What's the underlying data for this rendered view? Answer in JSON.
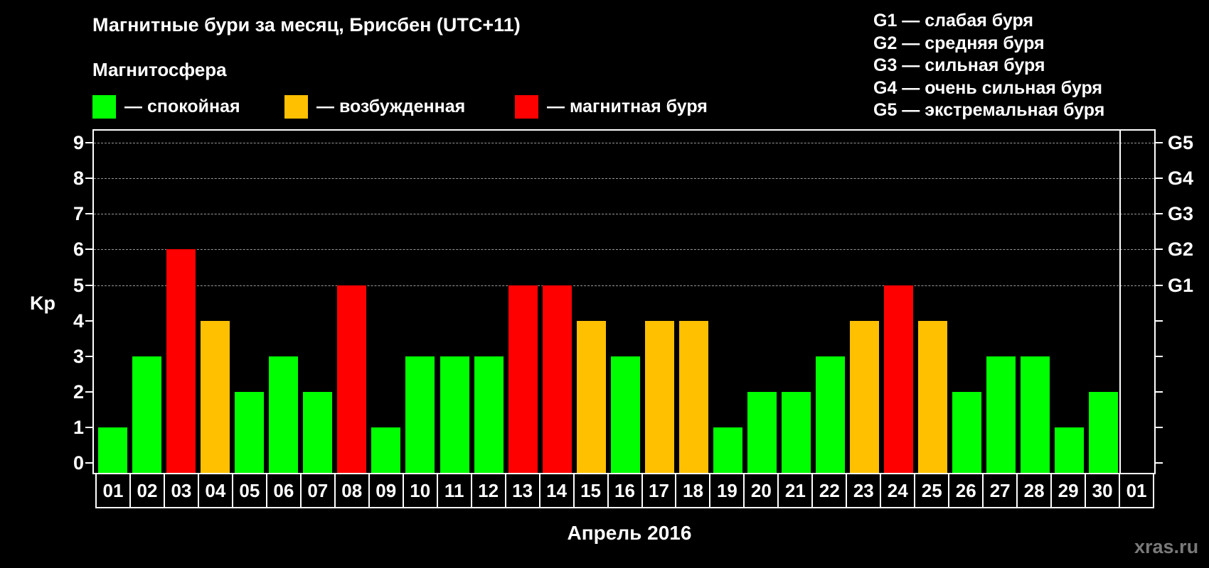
{
  "header": {
    "title": "Магнитные бури за месяц, Брисбен (UTC+11)",
    "subtitle": "Магнитосфера",
    "legend": [
      {
        "label": "— спокойная",
        "color": "#00ff00"
      },
      {
        "label": "— возбужденная",
        "color": "#ffc000"
      },
      {
        "label": "— магнитная буря",
        "color": "#ff0000"
      }
    ]
  },
  "g_scale": [
    "G1 — слабая буря",
    "G2 — средняя буря",
    "G3 — сильная буря",
    "G4 — очень сильная буря",
    "G5 — экстремальная буря"
  ],
  "axes": {
    "ylabel": "Kp",
    "xlabel": "Апрель 2016",
    "y_ticks": [
      "0",
      "1",
      "2",
      "3",
      "4",
      "5",
      "6",
      "7",
      "8",
      "9"
    ],
    "right_ticks": {
      "5": "G1",
      "6": "G2",
      "7": "G3",
      "8": "G4",
      "9": "G5"
    }
  },
  "watermark": "xras.ru",
  "chart_data": {
    "type": "bar",
    "title": "Магнитные бури за месяц, Брисбен (UTC+11)",
    "xlabel": "Апрель 2016",
    "ylabel": "Kp",
    "ylim": [
      0,
      9
    ],
    "grid": "dashed horizontal at 5–9",
    "legend_position": "top",
    "categories": [
      "01",
      "02",
      "03",
      "04",
      "05",
      "06",
      "07",
      "08",
      "09",
      "10",
      "11",
      "12",
      "13",
      "14",
      "15",
      "16",
      "17",
      "18",
      "19",
      "20",
      "21",
      "22",
      "23",
      "24",
      "25",
      "26",
      "27",
      "28",
      "29",
      "30",
      "01"
    ],
    "values": [
      1,
      3,
      6,
      4,
      2,
      3,
      2,
      5,
      1,
      3,
      3,
      3,
      5,
      5,
      4,
      3,
      4,
      4,
      1,
      2,
      2,
      3,
      4,
      5,
      4,
      2,
      3,
      3,
      1,
      2,
      null
    ],
    "status": [
      "calm",
      "calm",
      "storm",
      "active",
      "calm",
      "calm",
      "calm",
      "storm",
      "calm",
      "calm",
      "calm",
      "calm",
      "storm",
      "storm",
      "active",
      "calm",
      "active",
      "active",
      "calm",
      "calm",
      "calm",
      "calm",
      "active",
      "storm",
      "active",
      "calm",
      "calm",
      "calm",
      "calm",
      "calm",
      null
    ],
    "colors": {
      "calm": "#00ff00",
      "active": "#ffc000",
      "storm": "#ff0000"
    },
    "right_axis": {
      "5": "G1",
      "6": "G2",
      "7": "G3",
      "8": "G4",
      "9": "G5"
    }
  }
}
